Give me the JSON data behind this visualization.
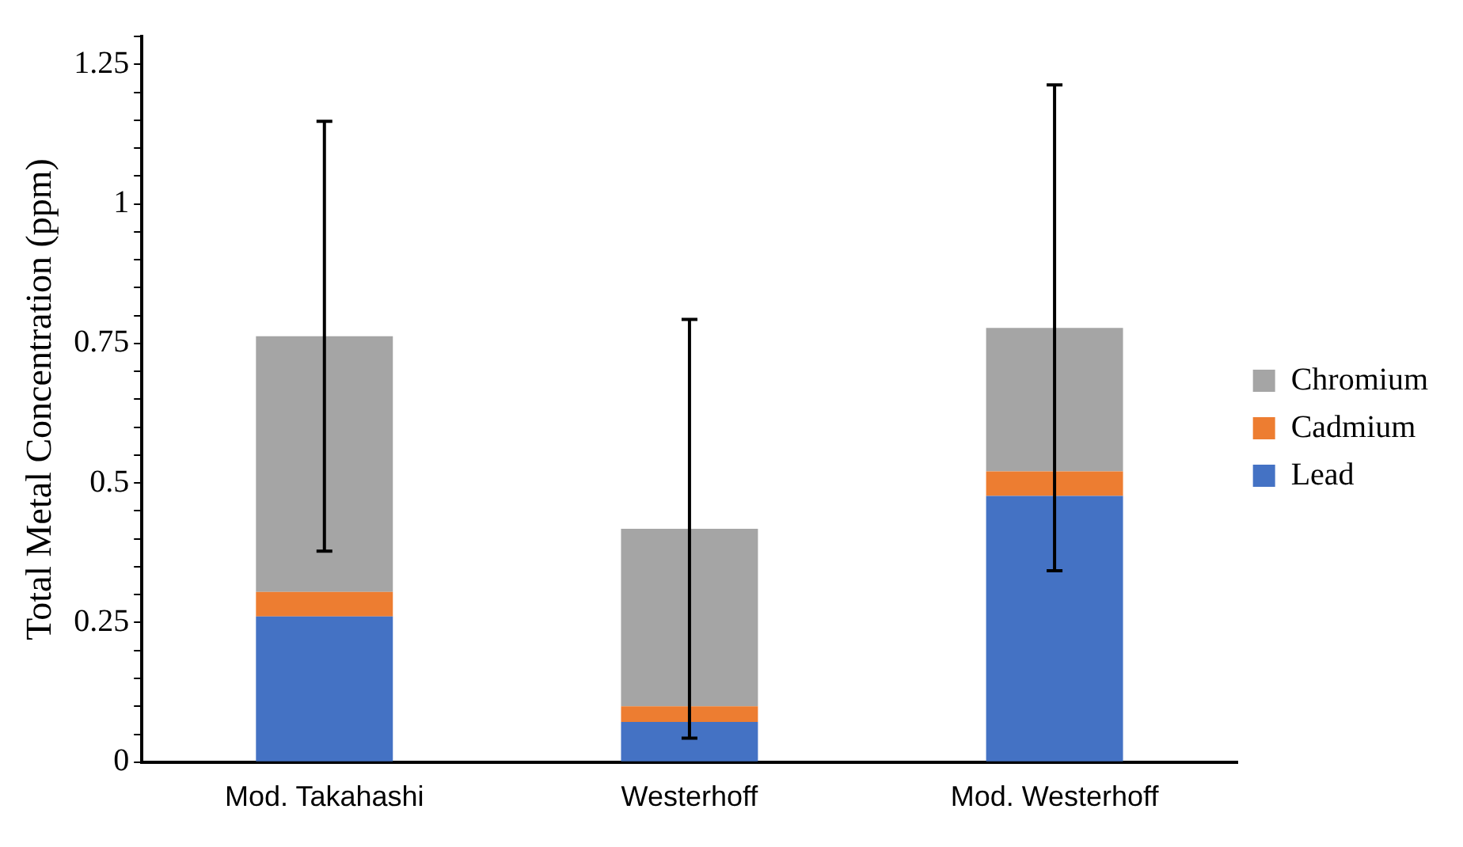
{
  "chart_data": {
    "type": "bar",
    "stacked": true,
    "ylabel": "Total Metal Concentration (ppm)",
    "categories": [
      "Mod. Takahashi",
      "Westerhoff",
      "Mod. Westerhoff"
    ],
    "series": [
      {
        "name": "Lead",
        "color": "#4472c4",
        "values": [
          0.261,
          0.072,
          0.477
        ]
      },
      {
        "name": "Cadmium",
        "color": "#ed7d31",
        "values": [
          0.044,
          0.028,
          0.044
        ]
      },
      {
        "name": "Chromium",
        "color": "#a5a5a5",
        "values": [
          0.458,
          0.318,
          0.257
        ],
        "errors": [
          0.385,
          0.375,
          0.435
        ]
      }
    ],
    "ylim": [
      0,
      1.3
    ],
    "yticks": [
      0,
      {
        "value": 0.05,
        "label": null
      },
      {
        "value": 0.1,
        "label": null
      },
      {
        "value": 0.15,
        "label": null
      },
      {
        "value": 0.2,
        "label": null
      },
      0.25,
      {
        "value": 0.3,
        "label": null
      },
      {
        "value": 0.35,
        "label": null
      },
      {
        "value": 0.4,
        "label": null
      },
      {
        "value": 0.45,
        "label": null
      },
      0.5,
      {
        "value": 0.55,
        "label": null
      },
      {
        "value": 0.6,
        "label": null
      },
      {
        "value": 0.65,
        "label": null
      },
      {
        "value": 0.7,
        "label": null
      },
      0.75,
      {
        "value": 0.8,
        "label": null
      },
      {
        "value": 0.85,
        "label": null
      },
      {
        "value": 0.9,
        "label": null
      },
      {
        "value": 0.95,
        "label": null
      },
      1,
      {
        "value": 1.05,
        "label": null
      },
      {
        "value": 1.1,
        "label": null
      },
      {
        "value": 1.15,
        "label": null
      },
      {
        "value": 1.2,
        "label": null
      },
      1.25,
      {
        "value": 1.3,
        "label": null
      }
    ],
    "grid": false,
    "legend": "right"
  }
}
